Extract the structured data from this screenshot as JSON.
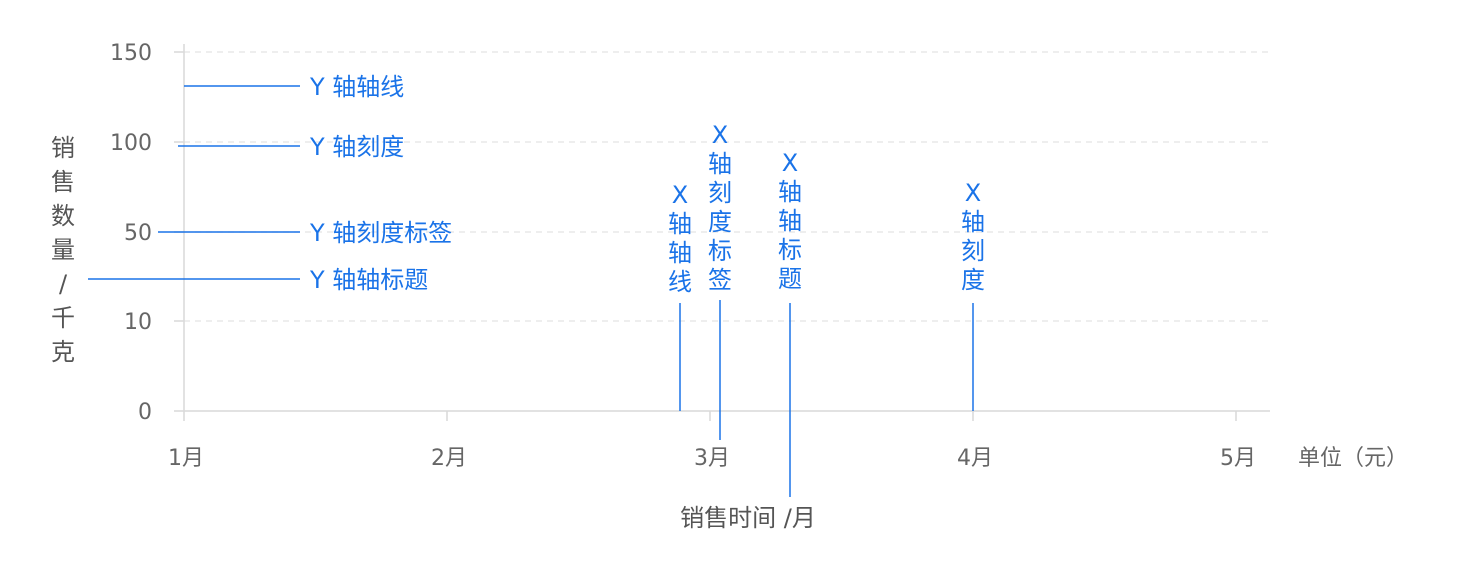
{
  "chart_data": {
    "type": "line",
    "y_axis": {
      "tick_labels": [
        "150",
        "100",
        "50",
        "10",
        "0"
      ],
      "title": "销售数量/千克",
      "grid": true
    },
    "x_axis": {
      "tick_labels": [
        "1月",
        "2月",
        "3月",
        "4月",
        "5月"
      ],
      "title": "销售时间 /月",
      "unit": "单位（元）"
    },
    "series": []
  },
  "annotations": {
    "y_axis_line": "Y 轴轴线",
    "y_tick": "Y 轴刻度",
    "y_tick_label": "Y 轴刻度标签",
    "y_axis_title": "Y 轴轴标题",
    "x_axis_line": "X轴轴线",
    "x_tick_label": "X轴刻度标签",
    "x_axis_title": "X轴轴标题",
    "x_tick": "X轴刻度"
  },
  "colors": {
    "annotation": "#1a73e8",
    "axis": "#d9d9d9",
    "grid": "#e3e3e3",
    "label": "#666666"
  }
}
